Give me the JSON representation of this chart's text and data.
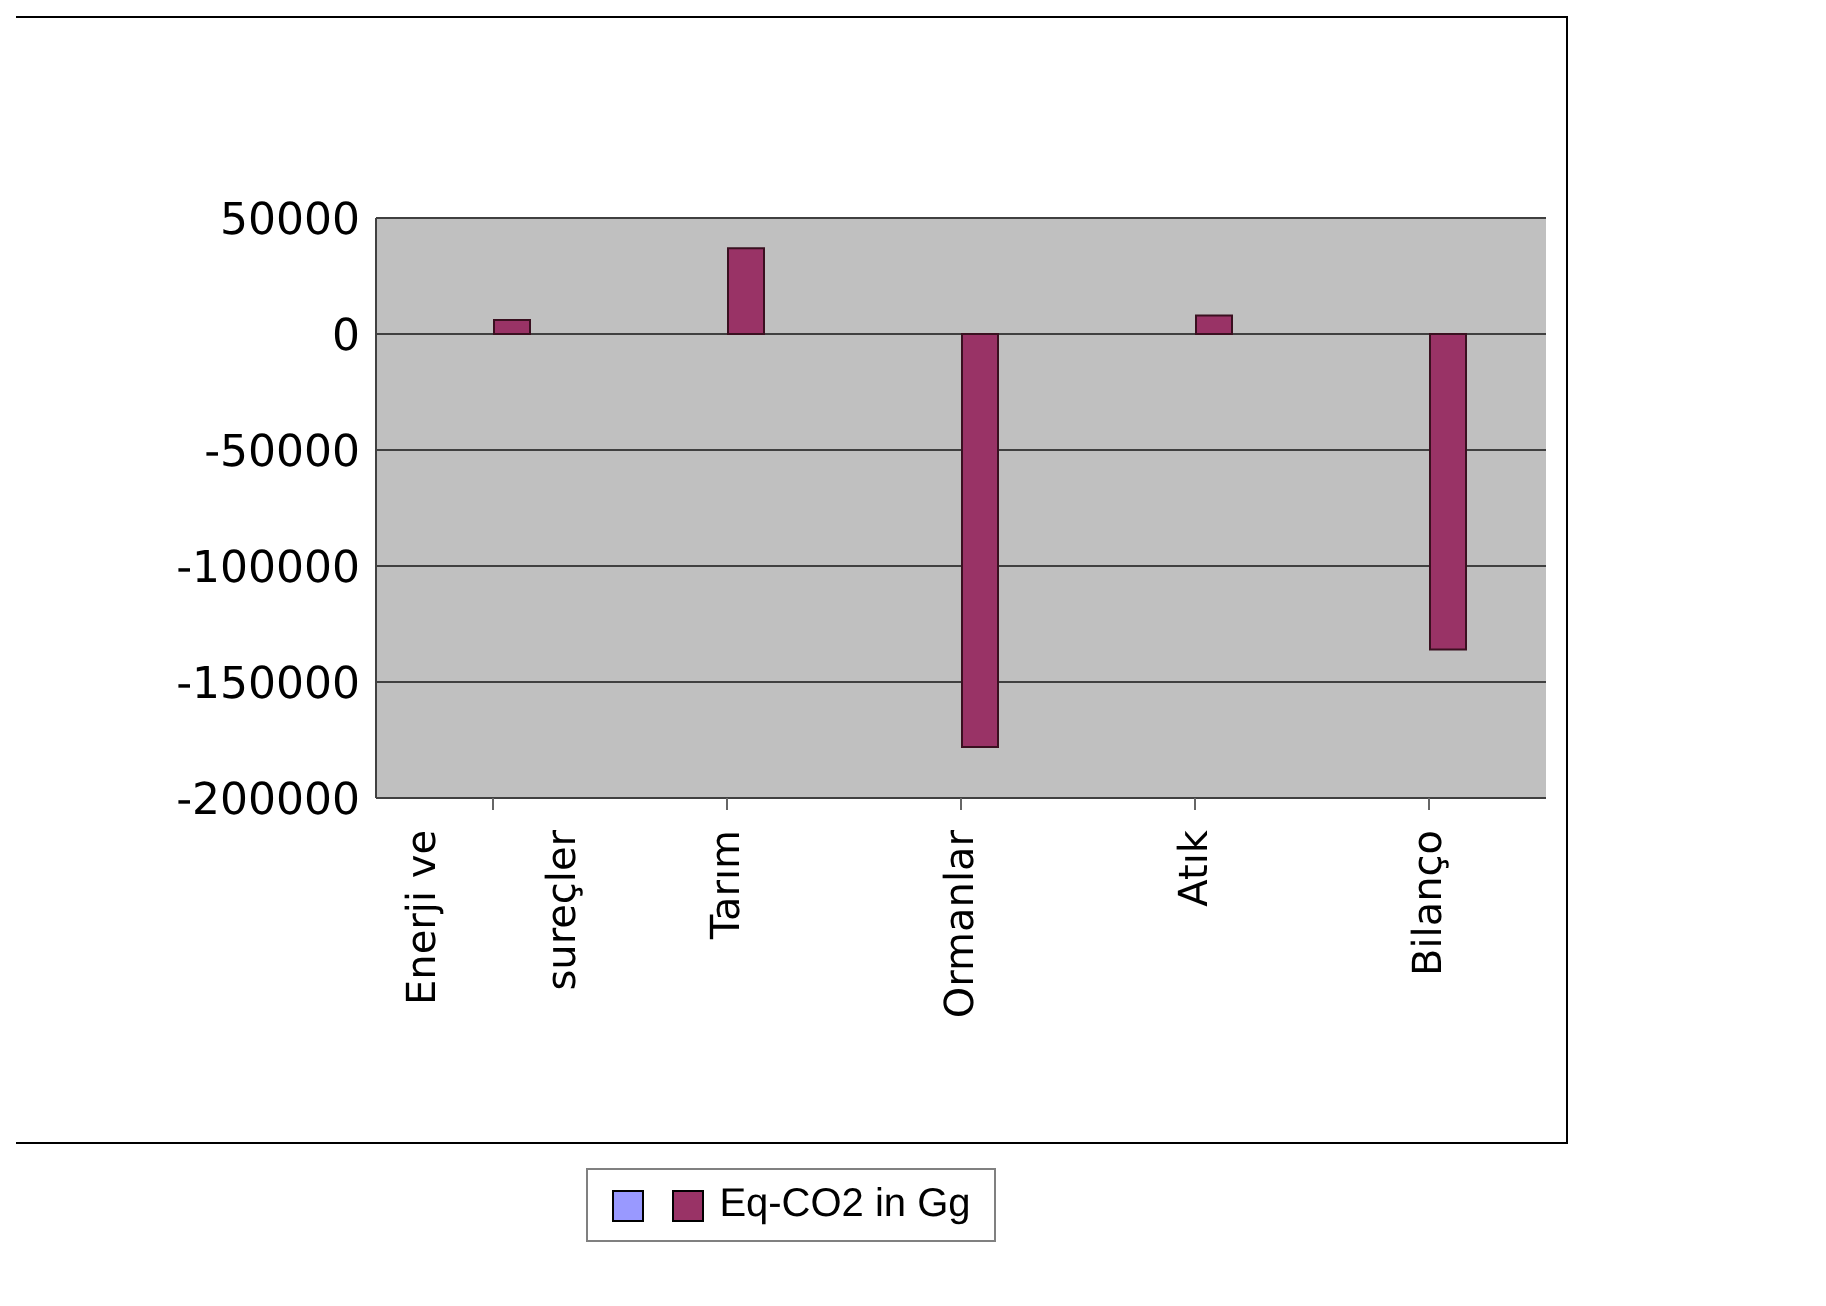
{
  "chart_data": {
    "type": "bar",
    "categories": [
      "Enerji ve sureçler",
      "Tarım",
      "Ormanlar",
      "Atık",
      "Bilanço"
    ],
    "series": [
      {
        "color": "#9999ff",
        "values": [
          null,
          null,
          null,
          null,
          null
        ]
      },
      {
        "name": "Eq-CO2 in Gg",
        "color": "#993366",
        "values": [
          6000,
          37000,
          -178000,
          8000,
          -136000
        ]
      }
    ],
    "ylim": [
      -200000,
      50000
    ],
    "yticks": [
      -200000,
      -150000,
      -100000,
      -50000,
      0,
      50000
    ],
    "grid": "y",
    "legend": "bottom"
  }
}
